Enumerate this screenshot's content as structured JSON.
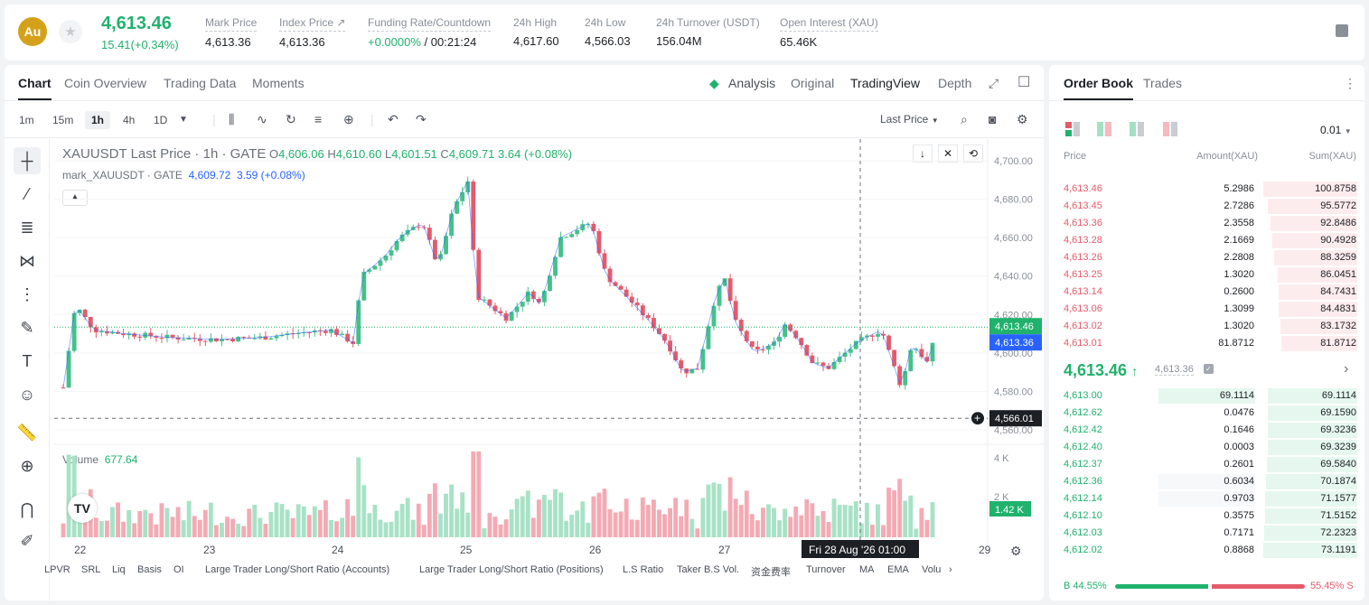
{
  "header": {
    "coin_logo": "Au",
    "last_price": "4,613.46",
    "change": "15.41(+0.34%)",
    "stats": [
      {
        "label": "Mark Price",
        "value": "4,613.36"
      },
      {
        "label": "Index Price ↗",
        "value": "4,613.36"
      },
      {
        "label": "Funding Rate/Countdown",
        "value_green": "+0.0000%",
        "value": " / 00:21:24"
      },
      {
        "label": "24h High",
        "value": "4,617.60"
      },
      {
        "label": "24h Low",
        "value": "4,566.03"
      },
      {
        "label": "24h Turnover (USDT)",
        "value": "156.04M"
      },
      {
        "label": "Open Interest (XAU)",
        "value": "65.46K"
      }
    ]
  },
  "chart_tabs": [
    "Chart",
    "Coin Overview",
    "Trading Data",
    "Moments"
  ],
  "view_tabs": [
    "Analysis",
    "Original",
    "TradingView",
    "Depth"
  ],
  "timeframes": [
    "1m",
    "15m",
    "1h",
    "4h",
    "1D"
  ],
  "price_type": "Last Price",
  "legend": {
    "symbol": "XAUUSDT Last Price · 1h · GATE",
    "o_label": "O",
    "o": "4,606.06",
    "h_label": "H",
    "h": "4,610.60",
    "l_label": "L",
    "l": "4,601.51",
    "c_label": "C",
    "c": "4,609.71",
    "chg": "3.64 (+0.08%)",
    "mark_label": "mark_XAUUSDT · GATE",
    "mark_value": "4,609.72",
    "mark_chg": "3.59 (+0.08%)",
    "volume_label": "Volume",
    "volume_value": "677.64"
  },
  "price_axis": [
    "4,700.00",
    "4,680.00",
    "4,660.00",
    "4,640.00",
    "4,620.00",
    "4,600.00",
    "4,580.00",
    "4,560.00"
  ],
  "price_tags": {
    "last": "4,613.46",
    "mark": "4,613.36",
    "crosshair": "4,566.01"
  },
  "volume_axis": [
    "4 K",
    "2 K"
  ],
  "volume_tag": "1.42 K",
  "time_axis": [
    "22",
    "23",
    "24",
    "25",
    "26",
    "27",
    "29"
  ],
  "crosshair_time": "Fri 28 Aug '26   01:00",
  "bottom_indicators": [
    "LPVR",
    "SRL",
    "Liq",
    "Basis",
    "OI",
    "Large Trader Long/Short Ratio (Accounts)",
    "Large Trader Long/Short Ratio (Positions)",
    "L.S Ratio",
    "Taker B.S Vol.",
    "资金费率",
    "Turnover",
    "MA",
    "EMA",
    "Volu"
  ],
  "order_book": {
    "tabs": [
      "Order Book",
      "Trades"
    ],
    "precision": "0.01",
    "headers": [
      "Price",
      "Amount(XAU)",
      "Sum(XAU)"
    ],
    "asks": [
      {
        "price": "4,613.46",
        "amount": "5.2986",
        "sum": "100.8758",
        "depth": 1.0
      },
      {
        "price": "4,613.45",
        "amount": "2.7286",
        "sum": "95.5772",
        "depth": 0.95
      },
      {
        "price": "4,613.36",
        "amount": "2.3558",
        "sum": "92.8486",
        "depth": 0.92
      },
      {
        "price": "4,613.28",
        "amount": "2.1669",
        "sum": "90.4928",
        "depth": 0.9
      },
      {
        "price": "4,613.26",
        "amount": "2.2808",
        "sum": "88.3259",
        "depth": 0.88
      },
      {
        "price": "4,613.25",
        "amount": "1.3020",
        "sum": "86.0451",
        "depth": 0.85
      },
      {
        "price": "4,613.14",
        "amount": "0.2600",
        "sum": "84.7431",
        "depth": 0.84
      },
      {
        "price": "4,613.06",
        "amount": "1.3099",
        "sum": "84.4831",
        "depth": 0.84
      },
      {
        "price": "4,613.02",
        "amount": "1.3020",
        "sum": "83.1732",
        "depth": 0.82
      },
      {
        "price": "4,613.01",
        "amount": "81.8712",
        "sum": "81.8712",
        "depth": 0.81
      }
    ],
    "mid_price": "4,613.46",
    "mid_mark": "4,613.36",
    "bids": [
      {
        "price": "4,613.00",
        "amount": "69.1114",
        "sum": "69.1114",
        "depth": 0.95
      },
      {
        "price": "4,612.62",
        "amount": "0.0476",
        "sum": "69.1590",
        "depth": 0.95
      },
      {
        "price": "4,612.42",
        "amount": "0.1646",
        "sum": "69.3236",
        "depth": 0.95
      },
      {
        "price": "4,612.40",
        "amount": "0.0003",
        "sum": "69.3239",
        "depth": 0.95
      },
      {
        "price": "4,612.37",
        "amount": "0.2601",
        "sum": "69.5840",
        "depth": 0.96
      },
      {
        "price": "4,612.36",
        "amount": "0.6034",
        "sum": "70.1874",
        "depth": 0.97
      },
      {
        "price": "4,612.14",
        "amount": "0.9703",
        "sum": "71.1577",
        "depth": 0.98
      },
      {
        "price": "4,612.10",
        "amount": "0.3575",
        "sum": "71.5152",
        "depth": 0.98
      },
      {
        "price": "4,612.03",
        "amount": "0.7171",
        "sum": "72.2323",
        "depth": 0.99
      },
      {
        "price": "4,612.02",
        "amount": "0.8868",
        "sum": "73.1191",
        "depth": 1.0
      }
    ],
    "buy_ratio": "44.55%",
    "sell_ratio": "55.45%",
    "buy_label": "B",
    "sell_label": "S"
  },
  "colors": {
    "up": "#20b26c",
    "down": "#e55b6b",
    "accent": "#1c1f24",
    "mark": "#2962ff"
  }
}
